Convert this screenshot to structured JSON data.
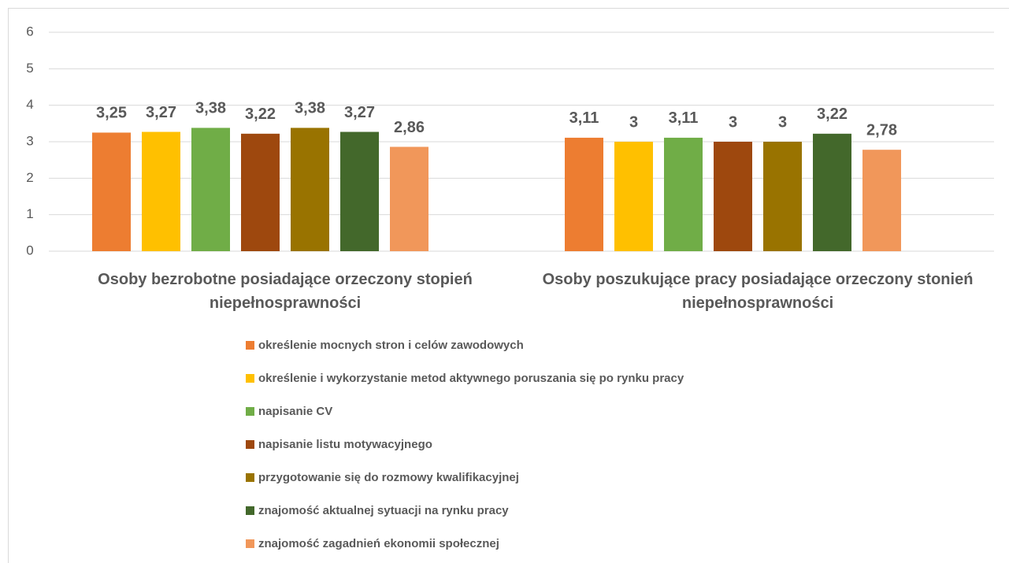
{
  "chart_data": {
    "type": "bar",
    "categories": [
      "Osoby bezrobotne posiadające orzeczony stopień niepełnosprawności",
      "Osoby poszukujące pracy posiadające orzeczony stonień niepełnosprawności"
    ],
    "series": [
      {
        "name": "określenie mocnych stron i celów zawodowych",
        "color": "#ED7D31",
        "values": [
          3.25,
          3.11
        ],
        "value_labels": [
          "3,25",
          "3,11"
        ]
      },
      {
        "name": "określenie i wykorzystanie metod aktywnego poruszania się po rynku pracy",
        "color": "#FFC000",
        "values": [
          3.27,
          3
        ],
        "value_labels": [
          "3,27",
          "3"
        ]
      },
      {
        "name": "napisanie CV",
        "color": "#70AD47",
        "values": [
          3.38,
          3.11
        ],
        "value_labels": [
          "3,38",
          "3,11"
        ]
      },
      {
        "name": "napisanie listu motywacyjnego",
        "color": "#9E480E",
        "values": [
          3.22,
          3
        ],
        "value_labels": [
          "3,22",
          "3"
        ]
      },
      {
        "name": "przygotowanie się do rozmowy kwalifikacyjnej",
        "color": "#997300",
        "values": [
          3.38,
          3
        ],
        "value_labels": [
          "3,38",
          "3"
        ]
      },
      {
        "name": "znajomość aktualnej sytuacji na rynku pracy",
        "color": "#43682B",
        "values": [
          3.27,
          3.22
        ],
        "value_labels": [
          "3,27",
          "3,22"
        ]
      },
      {
        "name": "znajomość zagadnień ekonomii społecznej",
        "color": "#F1975A",
        "values": [
          2.86,
          2.78
        ],
        "value_labels": [
          "2,86",
          "2,78"
        ]
      }
    ],
    "ylim": [
      0,
      6
    ],
    "yticks": [
      0,
      1,
      2,
      3,
      4,
      5,
      6
    ],
    "grid": true,
    "legend": "bottom"
  }
}
